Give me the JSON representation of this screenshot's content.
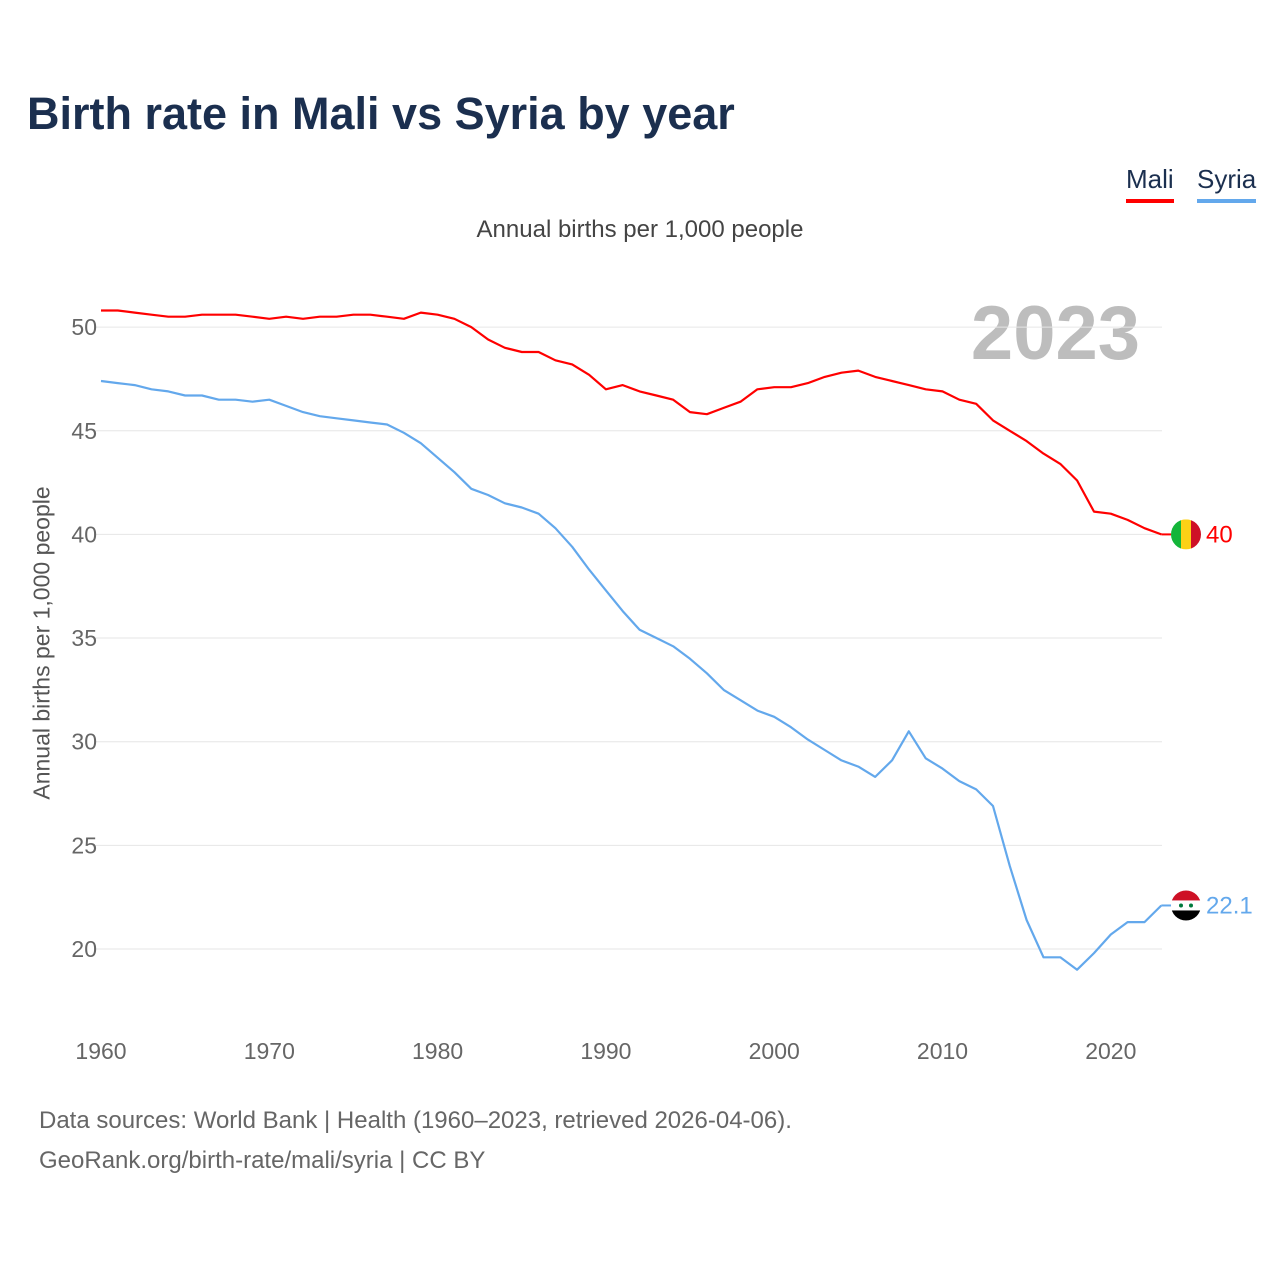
{
  "chart_data": {
    "type": "line",
    "title": "Birth rate in Mali vs Syria by year",
    "subtitle": "Annual births per 1,000 people",
    "ylabel": "Annual births per 1,000 people",
    "xlabel": "",
    "year_display": "2023",
    "xlim": [
      1960,
      2023
    ],
    "ylim": [
      16.2,
      51.8
    ],
    "x_ticks": [
      "1960",
      "1970",
      "1980",
      "1990",
      "2000",
      "2010",
      "2020"
    ],
    "y_ticks": [
      "20",
      "25",
      "30",
      "35",
      "40",
      "45",
      "50"
    ],
    "grid": true,
    "legend_position": "top-right",
    "x": [
      1960,
      1961,
      1962,
      1963,
      1964,
      1965,
      1966,
      1967,
      1968,
      1969,
      1970,
      1971,
      1972,
      1973,
      1974,
      1975,
      1976,
      1977,
      1978,
      1979,
      1980,
      1981,
      1982,
      1983,
      1984,
      1985,
      1986,
      1987,
      1988,
      1989,
      1990,
      1991,
      1992,
      1993,
      1994,
      1995,
      1996,
      1997,
      1998,
      1999,
      2000,
      2001,
      2002,
      2003,
      2004,
      2005,
      2006,
      2007,
      2008,
      2009,
      2010,
      2011,
      2012,
      2013,
      2014,
      2015,
      2016,
      2017,
      2018,
      2019,
      2020,
      2021,
      2022,
      2023
    ],
    "series": [
      {
        "name": "Mali",
        "color": "#ff0000",
        "end_label": "40",
        "values": [
          50.8,
          50.8,
          50.7,
          50.6,
          50.5,
          50.5,
          50.6,
          50.6,
          50.6,
          50.5,
          50.4,
          50.5,
          50.4,
          50.5,
          50.5,
          50.6,
          50.6,
          50.5,
          50.4,
          50.7,
          50.6,
          50.4,
          50.0,
          49.4,
          49.0,
          48.8,
          48.8,
          48.4,
          48.2,
          47.7,
          47.0,
          47.2,
          46.9,
          46.7,
          46.5,
          45.9,
          45.8,
          46.1,
          46.4,
          47.0,
          47.1,
          47.1,
          47.3,
          47.6,
          47.8,
          47.9,
          47.6,
          47.4,
          47.2,
          47.0,
          46.9,
          46.5,
          46.3,
          45.5,
          45.0,
          44.5,
          43.9,
          43.4,
          42.6,
          41.1,
          41.0,
          40.7,
          40.3,
          40.0
        ]
      },
      {
        "name": "Syria",
        "color": "#63a8ec",
        "end_label": "22.1",
        "values": [
          47.4,
          47.3,
          47.2,
          47.0,
          46.9,
          46.7,
          46.7,
          46.5,
          46.5,
          46.4,
          46.5,
          46.2,
          45.9,
          45.7,
          45.6,
          45.5,
          45.4,
          45.3,
          44.9,
          44.4,
          43.7,
          43.0,
          42.2,
          41.9,
          41.5,
          41.3,
          41.0,
          40.3,
          39.4,
          38.3,
          37.3,
          36.3,
          35.4,
          35.0,
          34.6,
          34.0,
          33.3,
          32.5,
          32.0,
          31.5,
          31.2,
          30.7,
          30.1,
          29.6,
          29.1,
          28.8,
          28.3,
          29.1,
          30.5,
          29.2,
          28.7,
          28.1,
          27.7,
          26.9,
          24.0,
          21.4,
          19.6,
          19.6,
          19.0,
          19.8,
          20.7,
          21.3,
          21.3,
          22.1
        ]
      }
    ]
  },
  "footer": {
    "line1": "Data sources: World Bank | Health (1960–2023, retrieved 2026-04-06).",
    "line2": "GeoRank.org/birth-rate/mali/syria | CC BY"
  }
}
